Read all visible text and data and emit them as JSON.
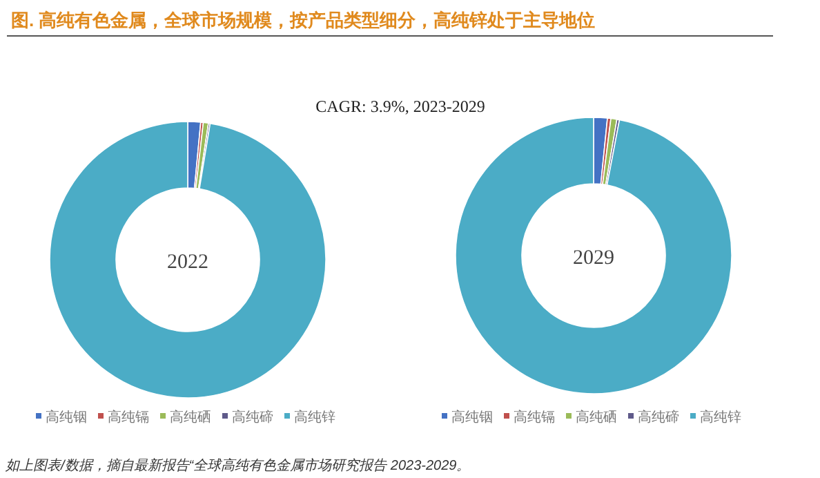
{
  "chart_data": [
    {
      "type": "donut",
      "title": "图.    高纯有色金属，全球市场规模，按产品类型细分，高纯锌处于主导地位",
      "subtitle": "2022",
      "annotations": [
        "CAGR: 3.9%, 2023-2029"
      ],
      "categories": [
        "高纯铟",
        "高纯镉",
        "高纯硒",
        "高纯碲",
        "高纯锌"
      ],
      "values": [
        1.5,
        0.3,
        0.6,
        0.2,
        97.4
      ],
      "colors": [
        "#4472c4",
        "#c0504d",
        "#9bbb59",
        "#5f5a8a",
        "#4bacc6"
      ],
      "legend": "bottom"
    },
    {
      "type": "donut",
      "subtitle": "2029",
      "annotations": [
        "如上图表/数据，摘自最新报告“全球高纯有色金属市场研究报告 2023-2029。"
      ],
      "categories": [
        "高纯铟",
        "高纯镉",
        "高纯硒",
        "高纯碲",
        "高纯锌"
      ],
      "values": [
        1.6,
        0.4,
        0.7,
        0.3,
        97.0
      ],
      "colors": [
        "#4472c4",
        "#c0504d",
        "#9bbb59",
        "#5f5a8a",
        "#4bacc6"
      ],
      "legend": "bottom"
    }
  ]
}
